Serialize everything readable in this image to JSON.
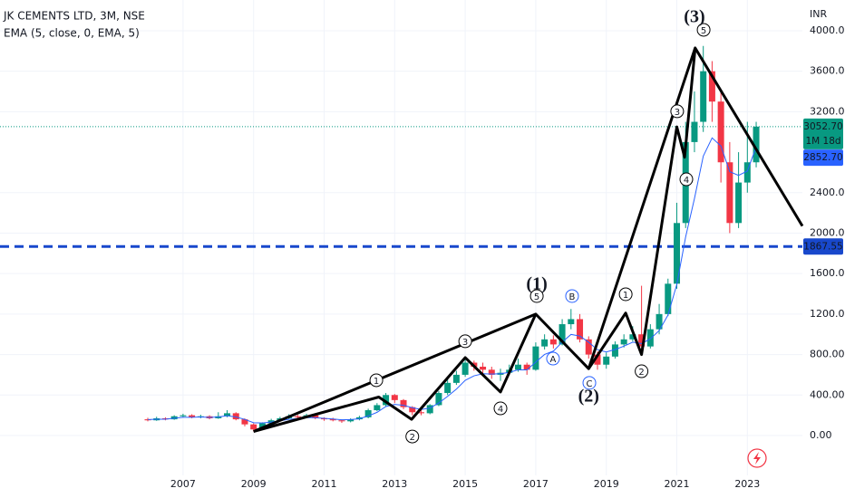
{
  "chart_data": {
    "type": "candlestick",
    "title": "JK CEMENTS LTD, 3M, NSE",
    "subtitle": "EMA (5, close, 0, EMA, 5)",
    "currency": "INR",
    "x": [
      2006,
      2006.25,
      2006.5,
      2006.75,
      2007,
      2007.25,
      2007.5,
      2007.75,
      2008,
      2008.25,
      2008.5,
      2008.75,
      2009,
      2009.25,
      2009.5,
      2009.75,
      2010,
      2010.25,
      2010.5,
      2010.75,
      2011,
      2011.25,
      2011.5,
      2011.75,
      2012,
      2012.25,
      2012.5,
      2012.75,
      2013,
      2013.25,
      2013.5,
      2013.75,
      2014,
      2014.25,
      2014.5,
      2014.75,
      2015,
      2015.25,
      2015.5,
      2015.75,
      2016,
      2016.25,
      2016.5,
      2016.75,
      2017,
      2017.25,
      2017.5,
      2017.75,
      2018,
      2018.25,
      2018.5,
      2018.75,
      2019,
      2019.25,
      2019.5,
      2019.75,
      2020,
      2020.25,
      2020.5,
      2020.75,
      2021,
      2021.25,
      2021.5,
      2021.75,
      2022,
      2022.25,
      2022.5,
      2022.75,
      2023,
      2023.25
    ],
    "open": [
      160,
      150,
      170,
      160,
      190,
      200,
      180,
      190,
      170,
      190,
      220,
      160,
      110,
      60,
      120,
      150,
      170,
      190,
      180,
      200,
      170,
      160,
      150,
      140,
      160,
      180,
      250,
      300,
      400,
      350,
      280,
      230,
      220,
      300,
      420,
      520,
      600,
      720,
      680,
      650,
      600,
      620,
      650,
      700,
      650,
      880,
      950,
      900,
      1100,
      1150,
      950,
      800,
      700,
      780,
      900,
      950,
      1000,
      880,
      1050,
      1200,
      1500,
      2100,
      2900,
      3100,
      3600,
      3300,
      2700,
      2100,
      2500,
      2700
    ],
    "high": [
      175,
      185,
      180,
      200,
      215,
      210,
      205,
      200,
      230,
      250,
      230,
      170,
      120,
      130,
      165,
      185,
      210,
      205,
      215,
      210,
      180,
      175,
      160,
      170,
      195,
      265,
      320,
      420,
      410,
      360,
      290,
      250,
      310,
      440,
      560,
      640,
      770,
      740,
      720,
      680,
      660,
      700,
      760,
      720,
      920,
      1000,
      990,
      1150,
      1250,
      1200,
      980,
      830,
      820,
      930,
      1000,
      1080,
      1480,
      1100,
      1300,
      1550,
      2300,
      3100,
      3400,
      3850,
      3700,
      3400,
      2900,
      2800,
      3100,
      3100
    ],
    "low": [
      140,
      145,
      150,
      155,
      180,
      170,
      170,
      160,
      165,
      180,
      150,
      90,
      40,
      55,
      110,
      140,
      160,
      170,
      170,
      160,
      145,
      140,
      125,
      130,
      150,
      170,
      240,
      290,
      320,
      260,
      200,
      200,
      210,
      290,
      400,
      500,
      580,
      640,
      610,
      560,
      540,
      600,
      630,
      600,
      640,
      850,
      860,
      890,
      1050,
      920,
      760,
      650,
      660,
      760,
      870,
      930,
      850,
      860,
      1000,
      1180,
      1450,
      2050,
      2800,
      3000,
      3100,
      2500,
      2000,
      2050,
      2400,
      2650
    ],
    "close": [
      150,
      170,
      160,
      190,
      200,
      180,
      190,
      170,
      190,
      220,
      160,
      110,
      60,
      120,
      150,
      170,
      190,
      180,
      200,
      170,
      160,
      150,
      140,
      160,
      180,
      250,
      300,
      400,
      350,
      280,
      230,
      220,
      300,
      420,
      520,
      600,
      720,
      680,
      650,
      600,
      620,
      650,
      700,
      650,
      880,
      950,
      900,
      1100,
      1150,
      950,
      800,
      700,
      780,
      900,
      950,
      1000,
      880,
      1050,
      1200,
      1500,
      2100,
      2900,
      3100,
      3600,
      3300,
      2700,
      2100,
      2500,
      2700,
      3052.7
    ],
    "up_color": "#089981",
    "down_color": "#f23645",
    "ema": {
      "name": "EMA",
      "color": "#2962ff",
      "values": [
        157,
        161,
        161,
        171,
        180,
        180,
        183,
        179,
        183,
        195,
        183,
        159,
        126,
        124,
        133,
        145,
        160,
        167,
        178,
        175,
        170,
        163,
        155,
        157,
        165,
        193,
        229,
        286,
        307,
        298,
        275,
        257,
        271,
        321,
        387,
        458,
        545,
        590,
        610,
        607,
        611,
        624,
        649,
        649,
        726,
        801,
        834,
        923,
        999,
        983,
        922,
        848,
        825,
        850,
        883,
        922,
        908,
        955,
        1037,
        1191,
        1494,
        1963,
        2342,
        2761,
        2941,
        2861,
        2607,
        2571,
        2614,
        2852.7
      ]
    },
    "waves": [
      {
        "color": "#000000",
        "x": [
          2009,
          2017,
          2018.5,
          2021.52,
          2024.56
        ],
        "values": [
          40,
          1200,
          660,
          3830,
          2070
        ]
      },
      {
        "color": "#000000",
        "x": [
          2009,
          2012.55,
          2013.48,
          2015,
          2016,
          2017
        ],
        "values": [
          40,
          380,
          160,
          770,
          430,
          1200
        ]
      },
      {
        "color": "#000000",
        "x": [
          2018.5,
          2019.55,
          2020,
          2021,
          2021.22,
          2021.52
        ],
        "values": [
          660,
          1210,
          800,
          3050,
          2750,
          3830
        ]
      }
    ],
    "annotations": [
      {
        "text": "1",
        "x": 2012.48,
        "y": 546,
        "style": "circle",
        "color": "#000000"
      },
      {
        "text": "2",
        "x": 2013.5,
        "y": -10,
        "style": "circle",
        "color": "#000000"
      },
      {
        "text": "3",
        "x": 2015.0,
        "y": 931,
        "style": "circle",
        "color": "#000000"
      },
      {
        "text": "4",
        "x": 2016.0,
        "y": 268,
        "style": "circle",
        "color": "#000000"
      },
      {
        "text": "5",
        "x": 2017.03,
        "y": 1378,
        "style": "circle",
        "color": "#000000"
      },
      {
        "text": "(1)",
        "x": 2017.03,
        "y": 1485,
        "style": "big",
        "color": "#000000"
      },
      {
        "text": "A",
        "x": 2017.49,
        "y": 760,
        "style": "circle",
        "color": "#2962ff"
      },
      {
        "text": "B",
        "x": 2018.03,
        "y": 1378,
        "style": "circle",
        "color": "#2962ff"
      },
      {
        "text": "C",
        "x": 2018.52,
        "y": 520,
        "style": "circle",
        "color": "#2962ff"
      },
      {
        "text": "(2)",
        "x": 2018.5,
        "y": 375,
        "style": "big",
        "color": "#000000"
      },
      {
        "text": "1",
        "x": 2019.55,
        "y": 1396,
        "style": "circle",
        "color": "#000000"
      },
      {
        "text": "2",
        "x": 2020.0,
        "y": 635,
        "style": "circle",
        "color": "#000000"
      },
      {
        "text": "3",
        "x": 2021.01,
        "y": 3204,
        "style": "circle",
        "color": "#000000"
      },
      {
        "text": "4",
        "x": 2021.27,
        "y": 2532,
        "style": "circle",
        "color": "#000000"
      },
      {
        "text": "5",
        "x": 2021.76,
        "y": 4009,
        "style": "circle",
        "color": "#000000"
      },
      {
        "text": "(3)",
        "x": 2021.5,
        "y": 4125,
        "style": "big",
        "color": "#000000"
      }
    ],
    "hline": {
      "value": 1867.55,
      "label": "1867.55",
      "color": "#1848cc"
    },
    "last_price": {
      "value": 3052.7,
      "label": "3052.70"
    },
    "countdown": "1M 18d",
    "ema_last": {
      "value": 2852.7,
      "label": "2852.70"
    },
    "xlim": [
      2001.81,
      2024.56
    ],
    "xticks": [
      2007,
      2009,
      2011,
      2013,
      2015,
      2017,
      2019,
      2021,
      2023
    ],
    "ylim": [
      -394,
      4304
    ],
    "yticks": [
      {
        "value": 0,
        "label": "0.00"
      },
      {
        "value": 400,
        "label": "400.00"
      },
      {
        "value": 800,
        "label": "800.00"
      },
      {
        "value": 1200,
        "label": "1200.00"
      },
      {
        "value": 1600,
        "label": "1600.00"
      },
      {
        "value": 2000,
        "label": "2000.00"
      },
      {
        "value": 2400,
        "label": "2400.00"
      },
      {
        "value": 3200,
        "label": "3200.00"
      },
      {
        "value": 3600,
        "label": "3600.00"
      },
      {
        "value": 4000,
        "label": "4000.00"
      }
    ],
    "grid": true
  }
}
